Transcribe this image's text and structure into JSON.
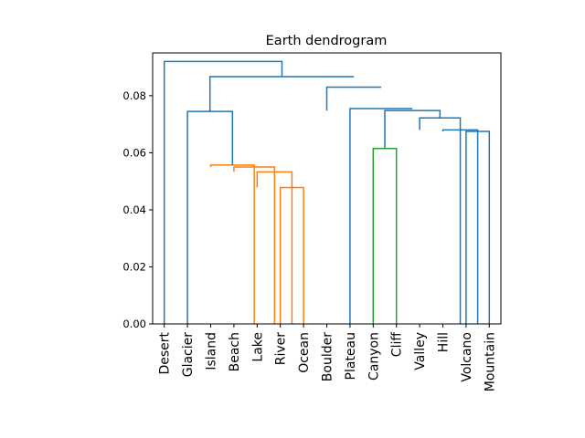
{
  "chart_data": {
    "type": "dendrogram",
    "title": "Earth dendrogram",
    "xlabel": "",
    "ylabel": "",
    "ylim": [
      0,
      0.095
    ],
    "yticks": [
      0.0,
      0.02,
      0.04,
      0.06,
      0.08
    ],
    "ytick_labels": [
      "0.00",
      "0.02",
      "0.04",
      "0.06",
      "0.08"
    ],
    "leaves": [
      "Desert",
      "Glacier",
      "Island",
      "Beach",
      "Lake",
      "River",
      "Ocean",
      "Boulder",
      "Plateau",
      "Canyon",
      "Cliff",
      "Valley",
      "Hill",
      "Volcano",
      "Mountain"
    ],
    "colors": {
      "C0": "#1f77b4",
      "C1": "#ff7f0e",
      "C2": "#2ca02c"
    },
    "links": [
      {
        "left": 5,
        "right": 6,
        "height": 0.0478,
        "color": "C1"
      },
      {
        "left": 4,
        "right": 7,
        "height": 0.0533,
        "color": "C1"
      },
      {
        "left": 3,
        "right": 8,
        "height": 0.055,
        "color": "C1"
      },
      {
        "left": 2,
        "right": 9,
        "height": 0.0557,
        "color": "C1"
      },
      {
        "left": 1,
        "right": 10,
        "height": 0.0745,
        "color": "C0"
      },
      {
        "left": 9,
        "right": 10,
        "height": 0.0615,
        "color": "C2"
      },
      {
        "left": 13,
        "right": 14,
        "height": 0.0675,
        "color": "C0"
      },
      {
        "left": 12,
        "right": 13,
        "height": 0.068,
        "color": "C0"
      },
      {
        "left": 11,
        "right": 12,
        "height": 0.0722,
        "color": "C0"
      },
      {
        "left": 10,
        "right": 11,
        "height": 0.0748,
        "color": "C0"
      },
      {
        "left": 9,
        "right": 10,
        "height": 0.0755,
        "color": "C0"
      },
      {
        "left": 7,
        "right": 9,
        "height": 0.083,
        "color": "C0"
      },
      {
        "left": 5,
        "right": 8,
        "height": 0.0867,
        "color": "C0"
      },
      {
        "left": 0,
        "right": 6,
        "height": 0.092,
        "color": "C0"
      }
    ]
  }
}
